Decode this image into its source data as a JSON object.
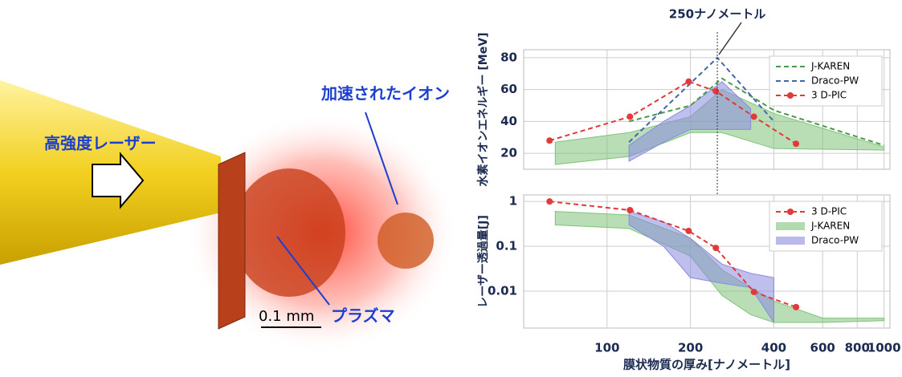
{
  "illustration": {
    "laser": "高強度レーザー",
    "ions": "加速されたイオン",
    "plasma": "プラズマ",
    "scale": "0.1 mm"
  },
  "chart_data": [
    {
      "type": "line",
      "ylabel": "水素イオンエネルギー [MeV]",
      "xscale": "log",
      "xlim": [
        50,
        1050
      ],
      "ylim": [
        10,
        85
      ],
      "yticks": [
        20,
        40,
        60,
        80
      ],
      "grid": true,
      "legend": "upper right",
      "annotation": {
        "text": "250ナノメートル",
        "x": 250
      },
      "bands": [
        {
          "color": "#7fc27a",
          "x": [
            65,
            120,
            200,
            260,
            400,
            1000
          ],
          "lower": [
            13,
            18,
            33,
            33,
            23,
            22
          ],
          "upper": [
            27,
            33,
            43,
            60,
            45,
            24
          ]
        },
        {
          "color": "#8a8ae0",
          "x": [
            120,
            160,
            200,
            260,
            330
          ],
          "lower": [
            15,
            27,
            35,
            35,
            35
          ],
          "upper": [
            25,
            40,
            50,
            65,
            48
          ]
        }
      ],
      "series": [
        {
          "name": "J-KAREN",
          "color": "#4a9a4a",
          "dash": true,
          "x": [
            120,
            200,
            260,
            400,
            1000
          ],
          "values": [
            40,
            50,
            67,
            47,
            25
          ]
        },
        {
          "name": "Draco-PW",
          "color": "#4466aa",
          "dash": true,
          "x": [
            120,
            250,
            400
          ],
          "values": [
            27,
            80,
            40
          ]
        },
        {
          "name": "3 D-PIC",
          "color": "#e03a3a",
          "dash": true,
          "marker": true,
          "x": [
            62,
            121,
            197,
            247,
            339,
            481
          ],
          "values": [
            28,
            43,
            65,
            59,
            43,
            26
          ]
        }
      ]
    },
    {
      "type": "line",
      "ylabel": "レーザー透過量[J]",
      "xlabel": "膜状物質の厚み[ナノメートル]",
      "xscale": "log",
      "yscale": "log",
      "xlim": [
        50,
        1050
      ],
      "ylim": [
        0.0015,
        1.4
      ],
      "xticks": [
        100,
        200,
        400,
        600,
        800,
        1000
      ],
      "yticks": [
        1,
        0.1,
        0.01
      ],
      "grid": true,
      "legend": "upper right",
      "series": [
        {
          "name": "3 D-PIC",
          "color": "#e03a3a",
          "dash": true,
          "marker": true,
          "x": [
            62,
            121,
            197,
            247,
            339,
            481
          ],
          "values": [
            1,
            0.64,
            0.22,
            0.092,
            0.0096,
            0.0044
          ]
        },
        {
          "name": "J-KAREN",
          "color": "#7fc27a",
          "band": true,
          "x": [
            65,
            120,
            200,
            260,
            330,
            400,
            600,
            1000
          ],
          "upper": [
            0.6,
            0.5,
            0.15,
            0.03,
            0.012,
            0.006,
            0.0025,
            0.0025
          ],
          "lower": [
            0.3,
            0.25,
            0.06,
            0.008,
            0.003,
            0.002,
            0.002,
            0.0022
          ]
        },
        {
          "name": "Draco-PW",
          "color": "#8a8ae0",
          "band": true,
          "x": [
            120,
            160,
            200,
            260,
            330,
            400
          ],
          "upper": [
            0.6,
            0.35,
            0.15,
            0.04,
            0.025,
            0.02
          ],
          "lower": [
            0.3,
            0.1,
            0.02,
            0.015,
            0.012,
            0.002
          ]
        }
      ]
    }
  ]
}
